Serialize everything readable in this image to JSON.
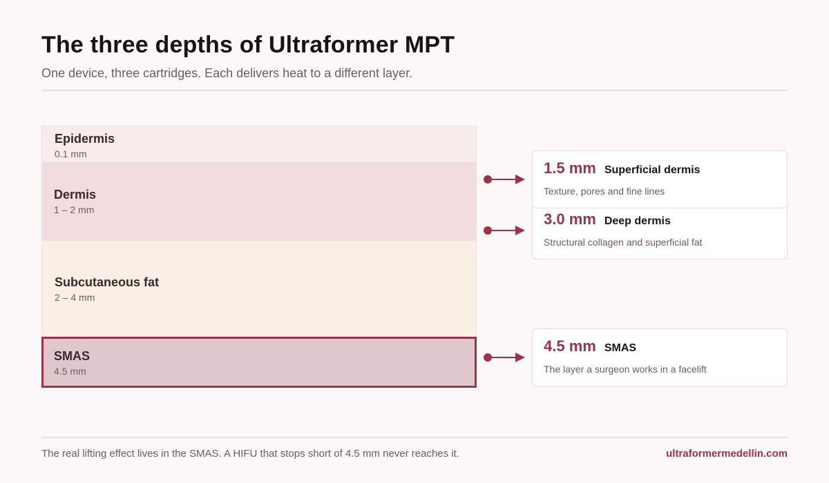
{
  "header": {
    "title": "The three depths of Ultraformer MPT",
    "subtitle": "One device, three cartridges. Each delivers heat to a different layer."
  },
  "layers": [
    {
      "name": "Epidermis",
      "depth": "0.1 mm"
    },
    {
      "name": "Dermis",
      "depth": "1 – 2 mm"
    },
    {
      "name": "Subcutaneous fat",
      "depth": "2 – 4 mm"
    },
    {
      "name": "SMAS",
      "depth": "4.5 mm"
    }
  ],
  "cartridges": [
    {
      "depth": "1.5 mm",
      "name": "Superficial dermis",
      "description": "Texture, pores and fine lines"
    },
    {
      "depth": "3.0 mm",
      "name": "Deep dermis",
      "description": "Structural collagen and superficial fat"
    },
    {
      "depth": "4.5 mm",
      "name": "SMAS",
      "description": "The layer a surgeon works in a facelift"
    }
  ],
  "footer": {
    "note": "The real lifting effect lives in the SMAS. A HIFU that stops short of 4.5 mm never reaches it.",
    "link": "ultraformermedellin.com"
  },
  "colors": {
    "accent": "#9b3445",
    "background": "#fcf7f8",
    "epidermis": "#f8ebec",
    "dermis": "#f2dcdf",
    "fat": "#f9efe5",
    "smas": "#dfc7cd"
  }
}
